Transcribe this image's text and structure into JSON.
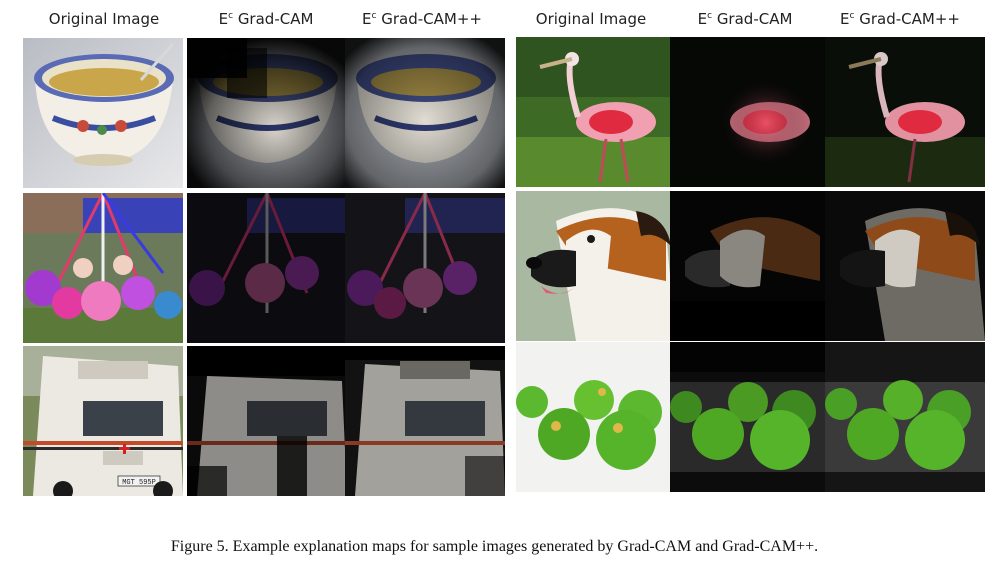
{
  "headers": {
    "left_original": "Original Image",
    "left_gradcam_sup": "c",
    "left_gradcam": "Grad-CAM",
    "left_gradcampp_sup": "c",
    "left_gradcampp": "Grad-CAM++",
    "right_original": "Original Image",
    "right_gradcam_sup": "c",
    "right_gradcam": "Grad-CAM",
    "right_gradcampp_sup": "c",
    "right_gradcampp": "Grad-CAM++",
    "e_letter": "E"
  },
  "tiles": {
    "camper_plate": "MGT 595P"
  },
  "caption": "Figure 5. Example explanation maps for sample images generated by Grad-CAM and Grad-CAM++."
}
